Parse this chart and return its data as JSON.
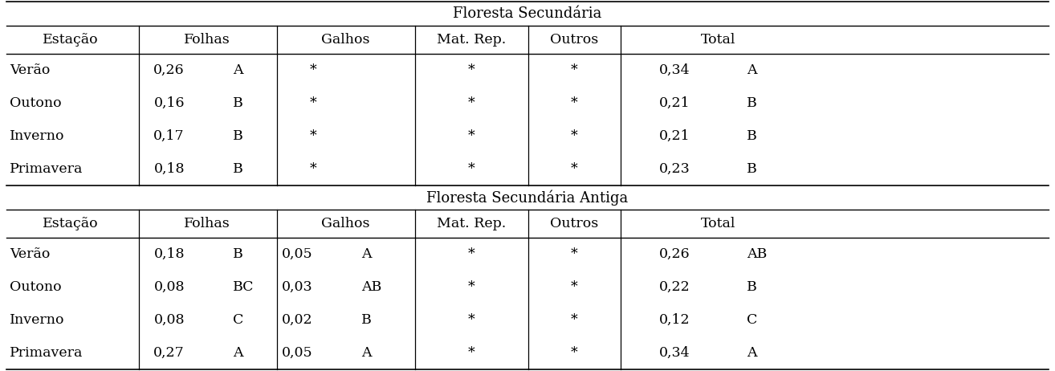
{
  "title1": "Floresta Secundária",
  "title2": "Floresta Secundária Antiga",
  "col_headers": [
    "Estação",
    "Folhas",
    "Galhos",
    "Mat. Rep.",
    "Outros",
    "Total"
  ],
  "section1": {
    "rows": [
      {
        "estacao": "Verão",
        "folhas_v": "0,26",
        "folhas_l": "A",
        "galhos": "*",
        "galhos_l": "",
        "matrep": "*",
        "outros": "*",
        "total_v": "0,34",
        "total_l": "A"
      },
      {
        "estacao": "Outono",
        "folhas_v": "0,16",
        "folhas_l": "B",
        "galhos": "*",
        "galhos_l": "",
        "matrep": "*",
        "outros": "*",
        "total_v": "0,21",
        "total_l": "B"
      },
      {
        "estacao": "Inverno",
        "folhas_v": "0,17",
        "folhas_l": "B",
        "galhos": "*",
        "galhos_l": "",
        "matrep": "*",
        "outros": "*",
        "total_v": "0,21",
        "total_l": "B"
      },
      {
        "estacao": "Primavera",
        "folhas_v": "0,18",
        "folhas_l": "B",
        "galhos": "*",
        "galhos_l": "",
        "matrep": "*",
        "outros": "*",
        "total_v": "0,23",
        "total_l": "B"
      }
    ]
  },
  "section2": {
    "rows": [
      {
        "estacao": "Verão",
        "folhas_v": "0,18",
        "folhas_l": "B",
        "galhos": "0,05",
        "galhos_l": "A",
        "matrep": "*",
        "outros": "*",
        "total_v": "0,26",
        "total_l": "AB"
      },
      {
        "estacao": "Outono",
        "folhas_v": "0,08",
        "folhas_l": "BC",
        "galhos": "0,03",
        "galhos_l": "AB",
        "matrep": "*",
        "outros": "*",
        "total_v": "0,22",
        "total_l": "B"
      },
      {
        "estacao": "Inverno",
        "folhas_v": "0,08",
        "folhas_l": "C",
        "galhos": "0,02",
        "galhos_l": "B",
        "matrep": "*",
        "outros": "*",
        "total_v": "0,12",
        "total_l": "C"
      },
      {
        "estacao": "Primavera",
        "folhas_v": "0,27",
        "folhas_l": "A",
        "galhos": "0,05",
        "galhos_l": "A",
        "matrep": "*",
        "outros": "*",
        "total_v": "0,34",
        "total_l": "A"
      }
    ]
  },
  "bg_color": "#ffffff",
  "text_color": "#000000",
  "font_size": 12.5,
  "title_font_size": 13
}
